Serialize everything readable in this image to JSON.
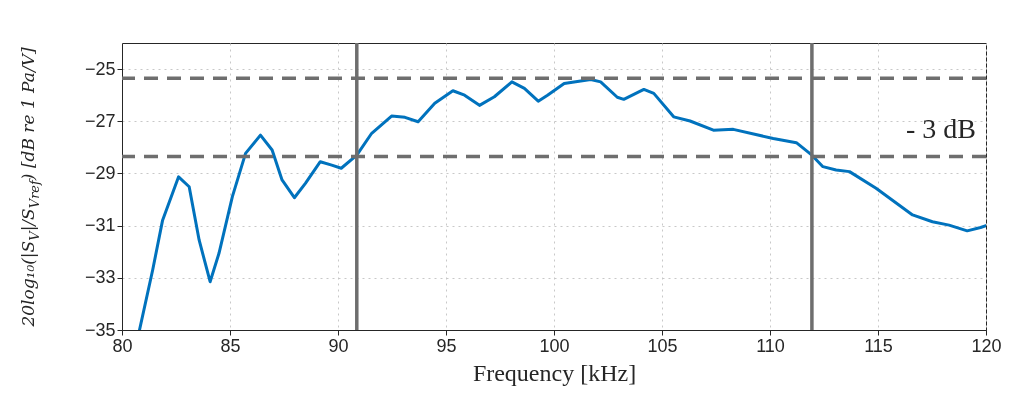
{
  "chart_data": {
    "type": "line",
    "xlabel": "Frequency [kHz]",
    "ylabel": "20log₁₀(|S$_{V}$|/S$_{Vref}$)  [dB re 1 Pa/V]",
    "x": [
      80.81,
      81.42,
      81.88,
      82.62,
      83.11,
      83.57,
      84.08,
      84.49,
      85.11,
      85.72,
      86.41,
      86.95,
      87.41,
      87.98,
      88.49,
      89.18,
      89.71,
      90.15,
      90.87,
      91.56,
      92.48,
      93.1,
      93.71,
      94.48,
      95.32,
      95.86,
      96.55,
      97.24,
      98.05,
      98.63,
      99.27,
      99.7,
      100.47,
      101.7,
      102.16,
      102.93,
      103.23,
      104.16,
      104.62,
      105.54,
      106.3,
      107.38,
      108.3,
      110.15,
      111.22,
      111.94,
      112.45,
      113.06,
      113.68,
      114.91,
      116.6,
      117.52,
      118.29,
      119.13,
      119.75,
      120
    ],
    "series": [
      {
        "color": "#0072bd",
        "values": [
          -35.0,
          -32.7,
          -30.79,
          -29.13,
          -29.51,
          -31.55,
          -33.15,
          -32.06,
          -29.89,
          -28.23,
          -27.53,
          -28.1,
          -29.25,
          -29.93,
          -29.38,
          -28.55,
          -28.68,
          -28.8,
          -28.3,
          -27.46,
          -26.8,
          -26.85,
          -27.02,
          -26.31,
          -25.83,
          -26.0,
          -26.39,
          -26.06,
          -25.49,
          -25.74,
          -26.23,
          -26.0,
          -25.55,
          -25.4,
          -25.49,
          -26.08,
          -26.16,
          -25.78,
          -25.93,
          -26.83,
          -26.99,
          -27.34,
          -27.31,
          -27.66,
          -27.82,
          -28.3,
          -28.74,
          -28.87,
          -28.93,
          -29.57,
          -30.59,
          -30.85,
          -30.98,
          -31.2,
          -31.07,
          -31.0
        ]
      }
    ],
    "xlim": [
      80,
      120
    ],
    "xticks": [
      80,
      85,
      90,
      95,
      100,
      105,
      110,
      115,
      120
    ],
    "ylim": [
      -35,
      -24
    ],
    "yticks": [
      -35,
      -33,
      -31,
      -29,
      -27,
      -25
    ],
    "grid": true,
    "line_style": "solid",
    "marker": "none",
    "ref_lines": [
      {
        "axis": "y",
        "value": -25.35,
        "color": "#6e6e6e",
        "line_style": "dashed"
      },
      {
        "axis": "y",
        "value": -28.35,
        "color": "#6e6e6e",
        "line_style": "dashed"
      },
      {
        "axis": "x",
        "value": 90.87,
        "color": "#6e6e6e",
        "line_style": "solid"
      },
      {
        "axis": "x",
        "value": 111.94,
        "color": "#6e6e6e",
        "line_style": "solid"
      }
    ],
    "annotations": [
      "- 3 dB"
    ]
  }
}
